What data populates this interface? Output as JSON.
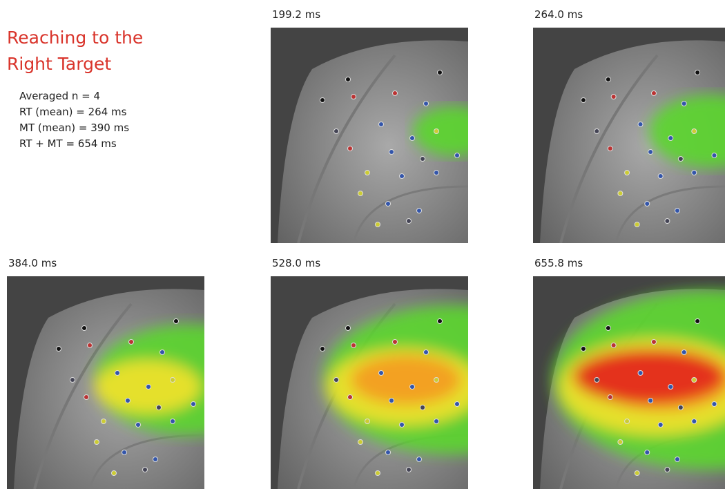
{
  "header": {
    "title": "Reaching to the Right Target"
  },
  "stats": [
    "Averaged  n = 4",
    "RT (mean) = 264 ms",
    "MT (mean) = 390 ms",
    "RT  +  MT  = 654 ms"
  ],
  "panels": [
    {
      "label": "199.2 ms"
    },
    {
      "label": "264.0 ms"
    },
    {
      "label": "384.0 ms"
    },
    {
      "label": "528.0 ms"
    },
    {
      "label": "655.8 ms"
    }
  ]
}
